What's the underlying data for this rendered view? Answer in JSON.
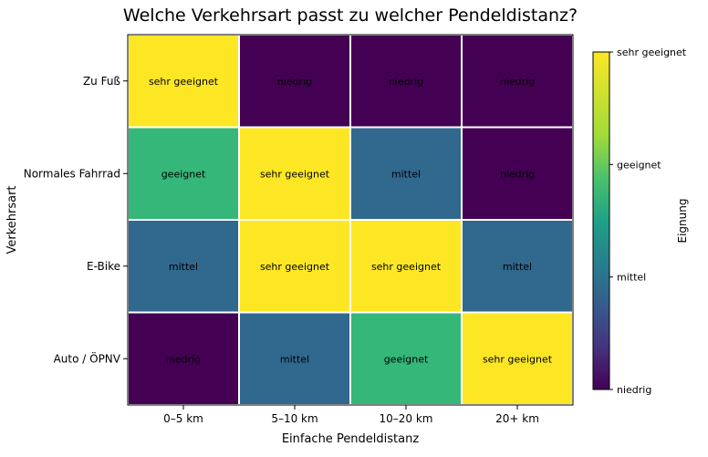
{
  "chart_data": {
    "type": "heatmap",
    "title": "Welche Verkehrsart passt zu welcher Pendeldistanz?",
    "xlabel": "Einfache Pendeldistanz",
    "ylabel": "Verkehrsart",
    "x_categories": [
      "0–5 km",
      "5–10 km",
      "10–20 km",
      "20+ km"
    ],
    "y_categories": [
      "Zu Fuß",
      "Normales Fahrrad",
      "E-Bike",
      "Auto / ÖPNV"
    ],
    "levels": [
      "niedrig",
      "mittel",
      "geeignet",
      "sehr geeignet"
    ],
    "values": [
      [
        3,
        0,
        0,
        0
      ],
      [
        2,
        3,
        1,
        0
      ],
      [
        1,
        3,
        3,
        1
      ],
      [
        0,
        1,
        2,
        3
      ]
    ],
    "labels": [
      [
        "sehr geeignet",
        "niedrig",
        "niedrig",
        "niedrig"
      ],
      [
        "geeignet",
        "sehr geeignet",
        "mittel",
        "niedrig"
      ],
      [
        "mittel",
        "sehr geeignet",
        "sehr geeignet",
        "mittel"
      ],
      [
        "niedrig",
        "mittel",
        "geeignet",
        "sehr geeignet"
      ]
    ],
    "colorbar": {
      "label": "Eignung",
      "range": [
        0,
        3
      ],
      "ticks": [
        {
          "value": 0,
          "label": "niedrig"
        },
        {
          "value": 1,
          "label": "mittel"
        },
        {
          "value": 2,
          "label": "geeignet"
        },
        {
          "value": 3,
          "label": "sehr geeignet"
        }
      ]
    },
    "colormap": "viridis",
    "colors": {
      "0": "#440154",
      "1": "#31688e",
      "2": "#35b779",
      "3": "#fde725"
    },
    "cell_border_color": "#ffffff"
  }
}
